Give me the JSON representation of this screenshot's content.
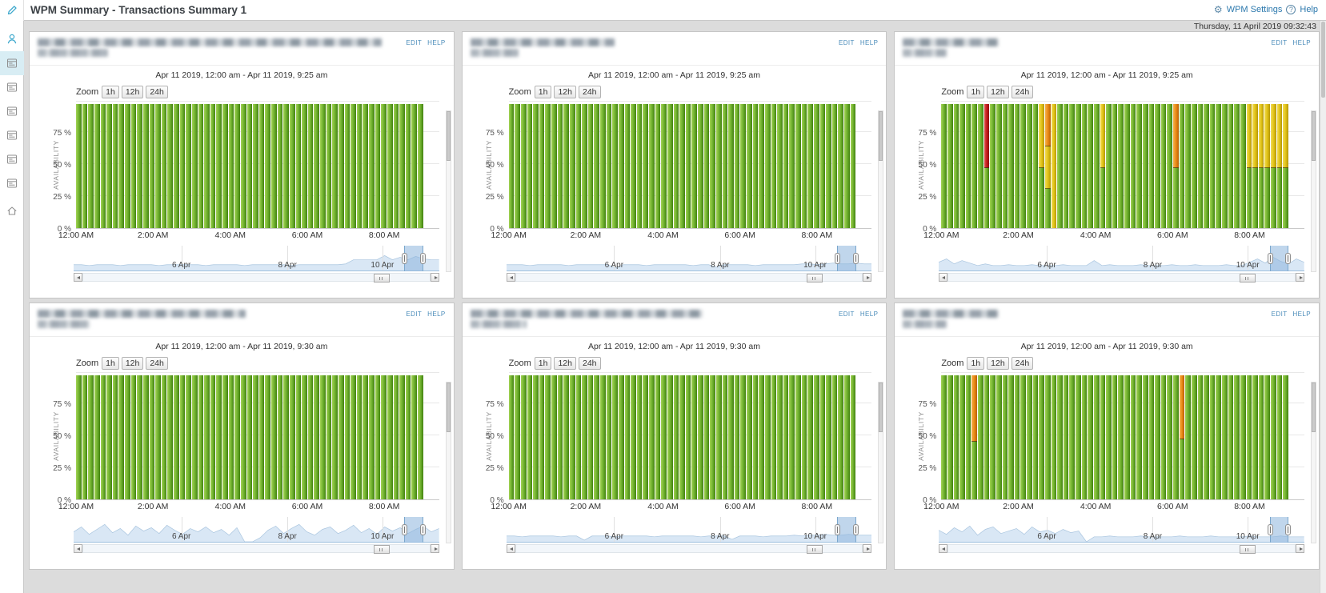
{
  "header": {
    "title": "WPM Summary - Transactions Summary 1",
    "wpm_settings_label": "WPM Settings",
    "help_label": "Help",
    "timestamp": "Thursday, 11 April 2019 09:32:43"
  },
  "sidebar": {
    "items": [
      {
        "name": "user",
        "glyph": "user",
        "active": false
      },
      {
        "name": "summary-view-1",
        "glyph": "doc",
        "active": true
      },
      {
        "name": "summary-view-2",
        "glyph": "doc",
        "active": false
      },
      {
        "name": "summary-view-3",
        "glyph": "doc",
        "active": false
      },
      {
        "name": "summary-view-4",
        "glyph": "doc",
        "active": false
      },
      {
        "name": "summary-view-5",
        "glyph": "doc",
        "active": false
      },
      {
        "name": "summary-view-6",
        "glyph": "doc",
        "active": false
      },
      {
        "name": "home",
        "glyph": "home",
        "active": false
      }
    ]
  },
  "colors": {
    "green": "#6cae2c",
    "red": "#c01a1a",
    "orange": "#e88612",
    "yellow": "#dfc013",
    "nav_fill": "#d9e7f5",
    "nav_selection": "#9ec6e6",
    "link_blue": "#2b78ad",
    "accent_teal": "#3ba7cc"
  },
  "panel_common": {
    "edit_label": "EDIT",
    "help_label": "HELP",
    "zoom_label": "Zoom",
    "zoom_buttons": [
      "1h",
      "12h",
      "24h"
    ],
    "y_axis_label": "AVAILABILITY",
    "y_ticks": [
      {
        "label": "75 %",
        "value": 75
      },
      {
        "label": "50 %",
        "value": 50
      },
      {
        "label": "25 %",
        "value": 25
      },
      {
        "label": "0 %",
        "value": 0
      }
    ],
    "x_ticks": [
      {
        "label": "12:00 AM",
        "pct": 0
      },
      {
        "label": "2:00 AM",
        "pct": 21.2
      },
      {
        "label": "4:00 AM",
        "pct": 42.5
      },
      {
        "label": "6:00 AM",
        "pct": 63.7
      },
      {
        "label": "8:00 AM",
        "pct": 84.9
      }
    ],
    "nav_dates": [
      {
        "label": "6 Apr",
        "pct": 29.5
      },
      {
        "label": "8 Apr",
        "pct": 58.5
      },
      {
        "label": "10 Apr",
        "pct": 84.5
      }
    ],
    "scroll_thumb_pct": 84
  },
  "panels": [
    {
      "date_range": "Apr 11 2019, 12:00 am - Apr 11 2019, 9:25 am",
      "title_blur": [
        430,
        88
      ],
      "bars": {
        "count": 57,
        "default": [
          [
            "green",
            99
          ]
        ],
        "exceptions": {}
      },
      "nav_heights": [
        7,
        7,
        6,
        7,
        7,
        7,
        6,
        7,
        7,
        7,
        7,
        6,
        7,
        7,
        7,
        7,
        7,
        6,
        7,
        7,
        7,
        7,
        6,
        7,
        7,
        7,
        7,
        7,
        6,
        7,
        7,
        7,
        7,
        7,
        7,
        8,
        13,
        13,
        13,
        13,
        18,
        13,
        16,
        13,
        17,
        14,
        13,
        13
      ],
      "nav_sel": [
        90.5,
        5.2
      ]
    },
    {
      "date_range": "Apr 11 2019, 12:00 am - Apr 11 2019, 9:25 am",
      "title_blur": [
        180,
        60
      ],
      "bars": {
        "count": 57,
        "default": [
          [
            "green",
            99
          ]
        ],
        "exceptions": {}
      },
      "nav_heights": [
        7,
        7,
        7,
        6,
        7,
        7,
        7,
        7,
        6,
        7,
        7,
        7,
        7,
        7,
        3,
        7,
        7,
        7,
        6,
        7,
        7,
        7,
        7,
        7,
        6,
        7,
        7,
        4,
        7,
        7,
        7,
        7,
        6,
        7,
        7,
        7,
        7,
        7,
        8,
        8,
        7,
        8,
        9,
        8,
        8,
        9,
        8,
        8
      ],
      "nav_sel": [
        90.5,
        5.2
      ]
    },
    {
      "date_range": "Apr 11 2019, 12:00 am - Apr 11 2019, 9:25 am",
      "title_blur": [
        120,
        55
      ],
      "bars": {
        "count": 57,
        "default": [
          [
            "green",
            99
          ]
        ],
        "exceptions": {
          "7": [
            [
              "green",
              48
            ],
            [
              "red",
              51
            ]
          ],
          "16": [
            [
              "green",
              48
            ],
            [
              "yellow",
              51
            ]
          ],
          "17": [
            [
              "green",
              31
            ],
            [
              "yellow",
              34
            ],
            [
              "orange",
              34
            ]
          ],
          "18": [
            [
              "yellow",
              99
            ]
          ],
          "26": [
            [
              "green",
              48
            ],
            [
              "yellow",
              51
            ]
          ],
          "38": [
            [
              "green",
              48
            ],
            [
              "orange",
              51
            ]
          ],
          "50": [
            [
              "green",
              48
            ],
            [
              "yellow",
              51
            ]
          ],
          "51": [
            [
              "green",
              48
            ],
            [
              "yellow",
              51
            ]
          ],
          "52": [
            [
              "green",
              48
            ],
            [
              "yellow",
              51
            ]
          ],
          "53": [
            [
              "green",
              48
            ],
            [
              "yellow",
              51
            ]
          ],
          "54": [
            [
              "green",
              48
            ],
            [
              "yellow",
              51
            ]
          ],
          "55": [
            [
              "green",
              48
            ],
            [
              "yellow",
              51
            ]
          ],
          "56": [
            [
              "green",
              48
            ],
            [
              "yellow",
              51
            ]
          ]
        }
      },
      "nav_heights": [
        10,
        14,
        8,
        12,
        9,
        6,
        8,
        6,
        6,
        7,
        6,
        6,
        7,
        6,
        6,
        6,
        7,
        6,
        6,
        6,
        12,
        6,
        7,
        6,
        6,
        6,
        7,
        6,
        6,
        6,
        7,
        6,
        6,
        7,
        6,
        6,
        6,
        7,
        6,
        6,
        10,
        14,
        9,
        16,
        11,
        8,
        14,
        10
      ],
      "nav_sel": [
        90.5,
        5.2
      ]
    },
    {
      "date_range": "Apr 11 2019, 12:00 am - Apr 11 2019, 9:30 am",
      "title_blur": [
        260,
        65
      ],
      "bars": {
        "count": 57,
        "default": [
          [
            "green",
            99
          ]
        ],
        "exceptions": {}
      },
      "nav_heights": [
        12,
        18,
        9,
        15,
        21,
        11,
        16,
        8,
        19,
        13,
        17,
        10,
        20,
        14,
        9,
        16,
        12,
        18,
        11,
        15,
        8,
        17,
        0,
        0,
        5,
        14,
        19,
        10,
        16,
        21,
        12,
        8,
        15,
        18,
        10,
        14,
        20,
        11,
        16,
        9,
        18,
        13,
        17,
        10,
        15,
        19,
        12,
        16
      ],
      "nav_sel": [
        90.5,
        5.2
      ]
    },
    {
      "date_range": "Apr 11 2019, 12:00 am - Apr 11 2019, 9:30 am",
      "title_blur": [
        290,
        70
      ],
      "bars": {
        "count": 57,
        "default": [
          [
            "green",
            99
          ]
        ],
        "exceptions": {}
      },
      "nav_heights": [
        7,
        7,
        6,
        7,
        7,
        7,
        7,
        6,
        7,
        7,
        2,
        7,
        7,
        7,
        6,
        7,
        7,
        7,
        7,
        6,
        7,
        7,
        7,
        7,
        7,
        6,
        7,
        7,
        7,
        3,
        7,
        7,
        7,
        6,
        7,
        7,
        7,
        8,
        7,
        8,
        8,
        9,
        8,
        8,
        9,
        8,
        8,
        8
      ],
      "nav_sel": [
        90.5,
        5.2
      ]
    },
    {
      "date_range": "Apr 11 2019, 12:00 am - Apr 11 2019, 9:30 am",
      "title_blur": [
        120,
        55
      ],
      "bars": {
        "count": 57,
        "default": [
          [
            "green",
            99
          ]
        ],
        "exceptions": {
          "5": [
            [
              "green",
              46
            ],
            [
              "orange",
              53
            ]
          ],
          "39": [
            [
              "green",
              48
            ],
            [
              "orange",
              51
            ]
          ]
        }
      },
      "nav_heights": [
        14,
        9,
        17,
        12,
        19,
        8,
        15,
        18,
        10,
        13,
        16,
        9,
        18,
        12,
        14,
        10,
        15,
        11,
        13,
        0,
        6,
        6,
        7,
        6,
        6,
        6,
        7,
        6,
        6,
        6,
        6,
        7,
        6,
        6,
        6,
        7,
        6,
        6,
        6,
        6,
        7,
        6,
        6,
        6,
        7,
        6,
        6,
        6
      ],
      "nav_sel": [
        90.5,
        5.2
      ]
    }
  ]
}
